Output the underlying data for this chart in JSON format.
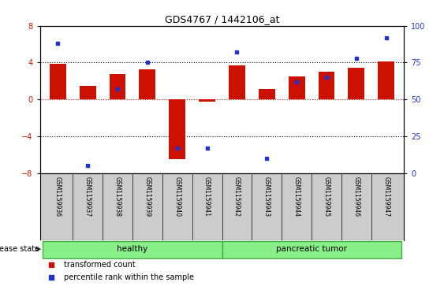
{
  "title": "GDS4767 / 1442106_at",
  "samples": [
    "GSM1159936",
    "GSM1159937",
    "GSM1159938",
    "GSM1159939",
    "GSM1159940",
    "GSM1159941",
    "GSM1159942",
    "GSM1159943",
    "GSM1159944",
    "GSM1159945",
    "GSM1159946",
    "GSM1159947"
  ],
  "transformed_count": [
    3.9,
    1.5,
    2.8,
    3.3,
    -6.5,
    -0.25,
    3.7,
    1.1,
    2.5,
    3.0,
    3.4,
    4.1
  ],
  "percentile_rank": [
    88,
    5,
    57,
    75,
    17,
    17,
    82,
    10,
    62,
    65,
    78,
    92
  ],
  "groups": [
    {
      "label": "healthy",
      "start": 0,
      "end": 6
    },
    {
      "label": "pancreatic tumor",
      "start": 6,
      "end": 12
    }
  ],
  "ylim_left": [
    -8,
    8
  ],
  "ylim_right": [
    0,
    100
  ],
  "yticks_left": [
    -8,
    -4,
    0,
    4,
    8
  ],
  "yticks_right": [
    0,
    25,
    50,
    75,
    100
  ],
  "bar_color": "#cc1100",
  "dot_color": "#2233cc",
  "hline0_color": "#cc1100",
  "hline_dotted_color": "#000000",
  "group_fill_color": "#88ee88",
  "group_edge_color": "#44aa44",
  "legend_label_bar": "transformed count",
  "legend_label_dot": "percentile rank within the sample",
  "disease_state_label": "disease state",
  "background_color": "#ffffff",
  "plot_bg_color": "#ffffff",
  "label_bg_color": "#cccccc",
  "bar_width": 0.55
}
